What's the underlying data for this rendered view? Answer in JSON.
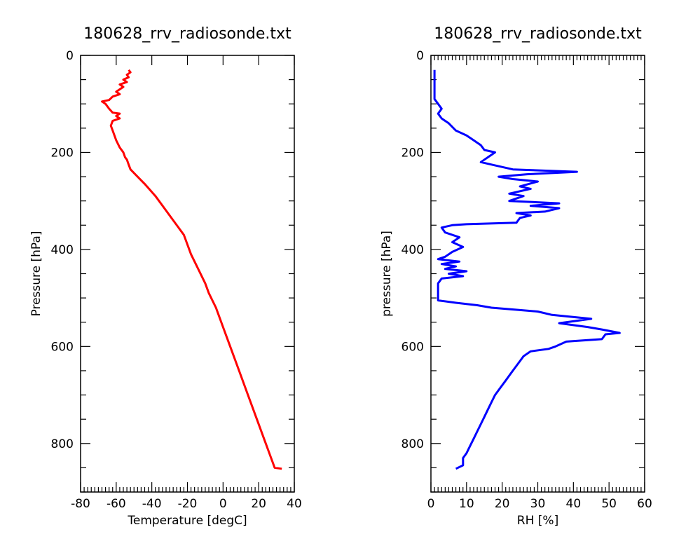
{
  "chart_data": [
    {
      "type": "line",
      "title": "180628_rrv_radiosonde.txt",
      "xlabel": "Temperature [degC]",
      "ylabel": "Pressure [hPa]",
      "xlim": [
        -80,
        40
      ],
      "ylim": [
        900,
        0
      ],
      "y_inverted": true,
      "xticks": [
        "-80",
        "-60",
        "-40",
        "-20",
        "0",
        "20",
        "40"
      ],
      "yticks": [
        "0",
        "200",
        "400",
        "600",
        "800"
      ],
      "grid": false,
      "legend": "none",
      "series": [
        {
          "color": "#ff0000",
          "points": [
            [
              33,
              852
            ],
            [
              29,
              850
            ],
            [
              24,
              800
            ],
            [
              19,
              750
            ],
            [
              14,
              700
            ],
            [
              9,
              650
            ],
            [
              4,
              600
            ],
            [
              0,
              560
            ],
            [
              -4,
              520
            ],
            [
              -8,
              490
            ],
            [
              -10,
              470
            ],
            [
              -14,
              440
            ],
            [
              -18,
              410
            ],
            [
              -20,
              390
            ],
            [
              -22,
              370
            ],
            [
              -28,
              340
            ],
            [
              -33,
              315
            ],
            [
              -38,
              290
            ],
            [
              -44,
              265
            ],
            [
              -48,
              250
            ],
            [
              -52,
              235
            ],
            [
              -53,
              225
            ],
            [
              -54,
              215
            ],
            [
              -55,
              210
            ],
            [
              -56,
              200
            ],
            [
              -58,
              190
            ],
            [
              -60,
              175
            ],
            [
              -62,
              155
            ],
            [
              -63,
              145
            ],
            [
              -62,
              135
            ],
            [
              -58,
              130
            ],
            [
              -60,
              125
            ],
            [
              -58,
              120
            ],
            [
              -62,
              118
            ],
            [
              -64,
              110
            ],
            [
              -66,
              100
            ],
            [
              -68,
              95
            ],
            [
              -64,
              92
            ],
            [
              -62,
              85
            ],
            [
              -58,
              80
            ],
            [
              -60,
              75
            ],
            [
              -56,
              65
            ],
            [
              -58,
              60
            ],
            [
              -54,
              55
            ],
            [
              -56,
              50
            ],
            [
              -53,
              45
            ],
            [
              -54,
              40
            ],
            [
              -52,
              35
            ],
            [
              -53,
              30
            ]
          ]
        }
      ]
    },
    {
      "type": "line",
      "title": "180628_rrv_radiosonde.txt",
      "xlabel": "RH [%]",
      "ylabel": "pressure [hPa]",
      "xlim": [
        0,
        60
      ],
      "ylim": [
        900,
        0
      ],
      "y_inverted": true,
      "xticks": [
        "0",
        "10",
        "20",
        "30",
        "40",
        "50",
        "60"
      ],
      "yticks": [
        "0",
        "200",
        "400",
        "600",
        "800"
      ],
      "grid": false,
      "legend": "none",
      "series": [
        {
          "color": "#0000ff",
          "points": [
            [
              7,
              852
            ],
            [
              9,
              845
            ],
            [
              9,
              830
            ],
            [
              10,
              820
            ],
            [
              11,
              805
            ],
            [
              12,
              790
            ],
            [
              13,
              775
            ],
            [
              14,
              760
            ],
            [
              15,
              745
            ],
            [
              16,
              730
            ],
            [
              17,
              715
            ],
            [
              18,
              700
            ],
            [
              19,
              690
            ],
            [
              20,
              680
            ],
            [
              21,
              670
            ],
            [
              22,
              660
            ],
            [
              23,
              650
            ],
            [
              24,
              640
            ],
            [
              25,
              630
            ],
            [
              26,
              620
            ],
            [
              28,
              610
            ],
            [
              33,
              605
            ],
            [
              35,
              600
            ],
            [
              38,
              590
            ],
            [
              48,
              585
            ],
            [
              49,
              575
            ],
            [
              53,
              572
            ],
            [
              48,
              565
            ],
            [
              44,
              560
            ],
            [
              36,
              552
            ],
            [
              45,
              543
            ],
            [
              34,
              535
            ],
            [
              30,
              528
            ],
            [
              25,
              525
            ],
            [
              17,
              520
            ],
            [
              13,
              515
            ],
            [
              7,
              510
            ],
            [
              2,
              505
            ],
            [
              2,
              485
            ],
            [
              2,
              470
            ],
            [
              3,
              460
            ],
            [
              9,
              455
            ],
            [
              5,
              450
            ],
            [
              10,
              445
            ],
            [
              4,
              440
            ],
            [
              7,
              435
            ],
            [
              3,
              430
            ],
            [
              8,
              425
            ],
            [
              2,
              420
            ],
            [
              4,
              415
            ],
            [
              6,
              405
            ],
            [
              9,
              395
            ],
            [
              6,
              385
            ],
            [
              8,
              375
            ],
            [
              4,
              365
            ],
            [
              3,
              355
            ],
            [
              6,
              350
            ],
            [
              10,
              348
            ],
            [
              24,
              345
            ],
            [
              25,
              335
            ],
            [
              28,
              330
            ],
            [
              24,
              325
            ],
            [
              32,
              322
            ],
            [
              36,
              315
            ],
            [
              28,
              310
            ],
            [
              36,
              305
            ],
            [
              22,
              300
            ],
            [
              26,
              290
            ],
            [
              22,
              285
            ],
            [
              28,
              275
            ],
            [
              25,
              270
            ],
            [
              30,
              260
            ],
            [
              23,
              255
            ],
            [
              19,
              250
            ],
            [
              27,
              245
            ],
            [
              41,
              240
            ],
            [
              23,
              235
            ],
            [
              17,
              225
            ],
            [
              14,
              220
            ],
            [
              15,
              215
            ],
            [
              17,
              205
            ],
            [
              18,
              200
            ],
            [
              15,
              195
            ],
            [
              14,
              185
            ],
            [
              12,
              175
            ],
            [
              10,
              165
            ],
            [
              7,
              155
            ],
            [
              5,
              140
            ],
            [
              3,
              130
            ],
            [
              2,
              120
            ],
            [
              3,
              110
            ],
            [
              2,
              100
            ],
            [
              1,
              90
            ],
            [
              1,
              70
            ],
            [
              1,
              50
            ],
            [
              1,
              30
            ]
          ]
        }
      ]
    }
  ]
}
